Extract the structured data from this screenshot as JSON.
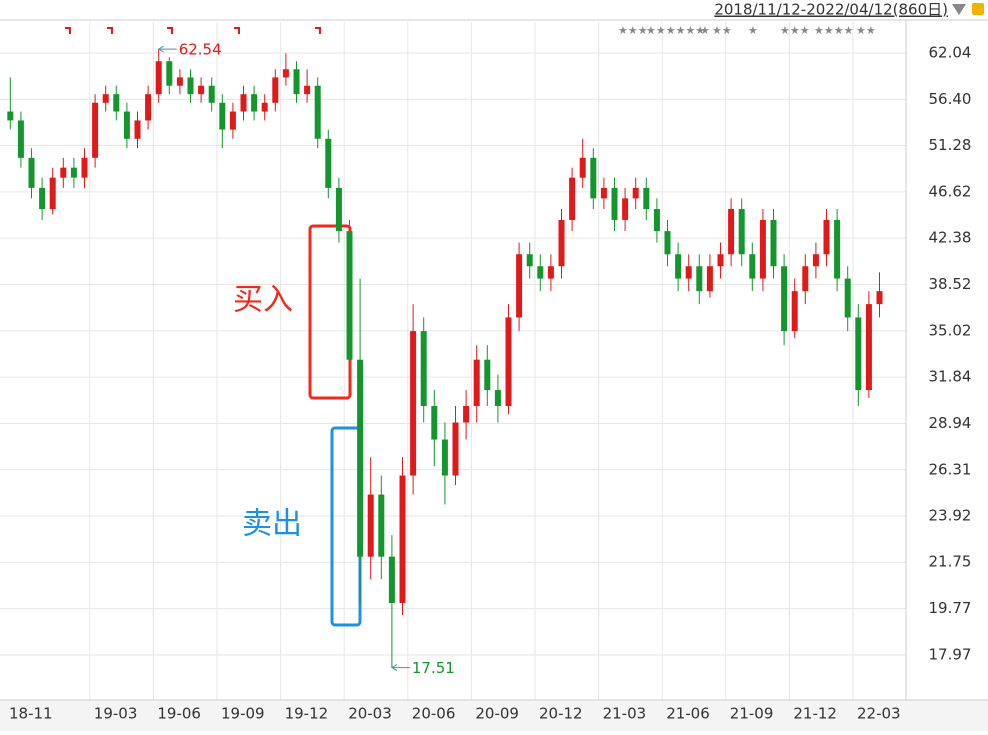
{
  "chart_data": {
    "type": "candlestick",
    "header": "2018/11/12-2022/04/12(860日)",
    "up_color": "#e0191a",
    "down_color": "#14962e",
    "log_scale": true,
    "ylim": [
      16.38,
      66.13
    ],
    "yticks": [
      62.04,
      {
        "value": 56.4,
        "label": "56.40"
      },
      51.28,
      46.62,
      42.38,
      38.52,
      35.02,
      31.84,
      28.94,
      26.31,
      23.92,
      21.75,
      19.77,
      17.97
    ],
    "categories": [
      "18-11",
      null,
      null,
      null,
      null,
      null,
      null,
      null,
      "19-03",
      null,
      null,
      null,
      null,
      null,
      "19-06",
      null,
      null,
      null,
      null,
      null,
      "19-09",
      null,
      null,
      null,
      null,
      null,
      "19-12",
      null,
      null,
      null,
      null,
      null,
      "20-03",
      null,
      null,
      null,
      null,
      null,
      "20-06",
      null,
      null,
      null,
      null,
      null,
      "20-09",
      null,
      null,
      null,
      null,
      null,
      "20-12",
      null,
      null,
      null,
      null,
      null,
      "21-03",
      null,
      null,
      null,
      null,
      null,
      "21-06",
      null,
      null,
      null,
      null,
      null,
      "21-09",
      null,
      null,
      null,
      null,
      null,
      "21-12",
      null,
      null,
      null,
      null,
      null,
      "22-03",
      null,
      null
    ],
    "open": [
      55,
      54,
      50,
      47,
      45,
      48,
      49,
      48,
      50,
      56,
      57,
      55,
      52,
      54,
      57,
      61,
      58,
      59,
      57,
      58,
      56,
      53,
      55,
      57,
      55,
      56,
      59,
      60,
      57,
      58,
      52,
      47,
      43,
      33,
      22,
      25,
      22,
      20,
      26,
      35,
      30,
      28,
      26,
      29,
      30,
      33,
      31,
      30,
      36,
      41,
      40,
      39,
      40,
      44,
      48,
      50,
      46,
      47,
      44,
      46,
      47,
      45,
      43,
      41,
      39,
      40,
      38,
      40,
      41,
      45,
      41,
      39,
      44,
      40,
      35,
      38,
      40,
      41,
      44,
      39,
      36,
      31,
      37
    ],
    "high": [
      59,
      55,
      51,
      48,
      49,
      50,
      50,
      51,
      57,
      58,
      58,
      56,
      55,
      58,
      62.54,
      61.5,
      60,
      60,
      59,
      59,
      57,
      56,
      58,
      58,
      57,
      60,
      62,
      61,
      60,
      59,
      53,
      48,
      44,
      39,
      27,
      26,
      23,
      27,
      37,
      36,
      31,
      29,
      30,
      31,
      34,
      34,
      32,
      37,
      42,
      42,
      41,
      41,
      45,
      49,
      52,
      51,
      48,
      48,
      47,
      48,
      48,
      46,
      44,
      42,
      41,
      41,
      41,
      42,
      46,
      46,
      42,
      45,
      45,
      41,
      39,
      41,
      42,
      45,
      45,
      40,
      37,
      38,
      39.5
    ],
    "low": [
      53,
      49,
      46,
      44,
      44.5,
      47,
      47,
      47,
      49,
      55,
      54,
      51,
      51,
      53,
      56,
      57,
      57,
      56,
      56,
      55,
      51,
      52,
      54,
      54,
      54,
      55,
      58,
      56,
      56,
      51,
      46,
      42,
      31,
      20,
      21,
      21,
      17.51,
      19.5,
      25,
      29,
      26.5,
      24.5,
      25.5,
      28,
      29,
      30,
      29,
      29.5,
      35,
      39,
      38,
      38,
      39,
      43,
      47,
      45,
      45,
      43,
      43,
      45,
      44,
      42,
      40,
      38,
      38,
      37,
      37.5,
      39,
      40,
      40,
      38,
      38,
      39,
      34,
      34.5,
      37,
      39,
      40,
      38,
      35,
      30,
      30.5,
      36
    ],
    "close": [
      54,
      50,
      47,
      45,
      48,
      49,
      48,
      50,
      56,
      57,
      55,
      52,
      54,
      57,
      61,
      58,
      59,
      57,
      58,
      56,
      53,
      55,
      57,
      55,
      56,
      59,
      60,
      57,
      58,
      52,
      47,
      43,
      33,
      22,
      25,
      22,
      20,
      26,
      35,
      30,
      28,
      26,
      29,
      30,
      33,
      31,
      30,
      36,
      41,
      40,
      39,
      40,
      44,
      48,
      50,
      46,
      47,
      44,
      46,
      47,
      45,
      43,
      41,
      39,
      40,
      38,
      40,
      41,
      45,
      41,
      39,
      44,
      40,
      35,
      38,
      40,
      41,
      44,
      39,
      36,
      31,
      37,
      38
    ],
    "annotations": [
      {
        "value": 62.54
      },
      {
        "value": 17.51
      }
    ],
    "box_labels": [
      "买入",
      "卖出"
    ],
    "star_groups": [
      "★★★",
      "★★★★★★",
      "★",
      "★★",
      "★",
      "★★★",
      "★★★★",
      "★★"
    ]
  }
}
